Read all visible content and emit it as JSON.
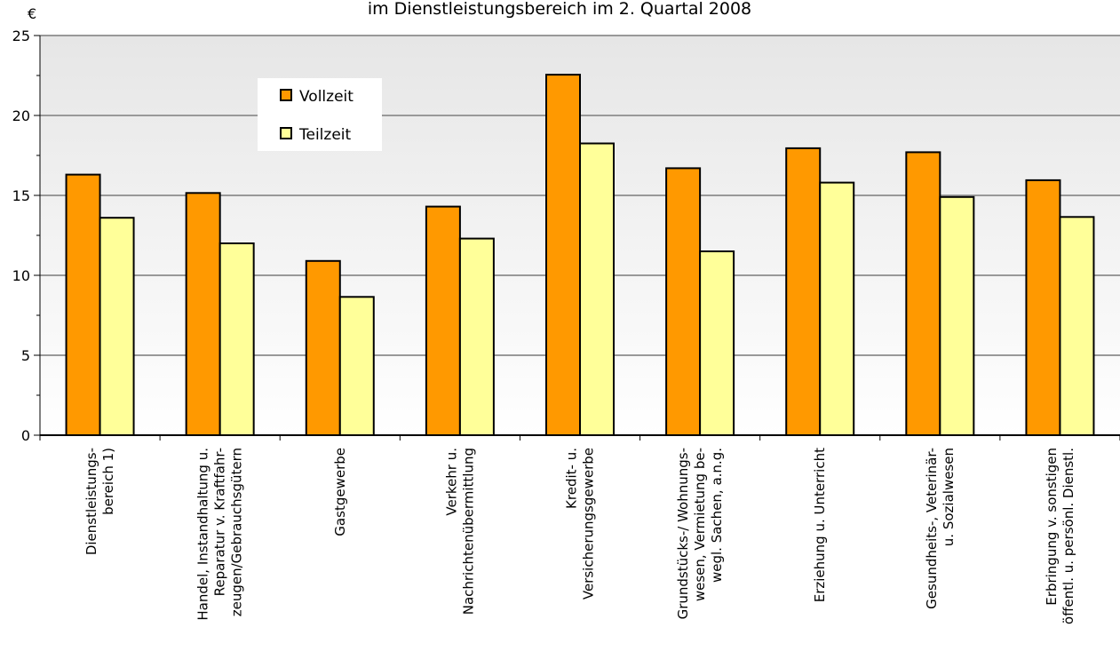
{
  "chart_data": {
    "type": "bar",
    "title": "im Dienstleistungsbereich im 2. Quartal 2008",
    "ylabel": "€",
    "ylim": [
      0,
      25
    ],
    "yticks": [
      0,
      5,
      10,
      15,
      20,
      25
    ],
    "grid": true,
    "legend_position": "top-left",
    "categories": [
      [
        "Dienstleistungs-",
        "bereich 1)"
      ],
      [
        "Handel, Instandhaltung u.",
        "Reparatur v. Kraftfahr-",
        "zeugen/Gebrauchsgütern"
      ],
      [
        "Gastgewerbe"
      ],
      [
        "Verkehr u.",
        "Nachrichtenübermittlung"
      ],
      [
        "Kredit- u.",
        "Versicherungsgewerbe"
      ],
      [
        "Grundstücks-/ Wohnungs-",
        "wesen, Vermietung be-",
        "wegl. Sachen, a.n.g."
      ],
      [
        "Erziehung u. Unterricht"
      ],
      [
        "Gesundheits-, Veterinär-",
        "u. Sozialwesen"
      ],
      [
        "Erbringung v. sonstigen",
        "öffentl. u. persönl. Dienstl."
      ]
    ],
    "series": [
      {
        "name": "Vollzeit",
        "color": "#ff9900",
        "values": [
          16.3,
          15.15,
          10.9,
          14.3,
          22.55,
          16.7,
          17.95,
          17.7,
          15.95
        ]
      },
      {
        "name": "Teilzeit",
        "color": "#ffff99",
        "values": [
          13.6,
          12.0,
          8.65,
          12.3,
          18.25,
          11.5,
          15.8,
          14.9,
          13.65
        ]
      }
    ]
  }
}
